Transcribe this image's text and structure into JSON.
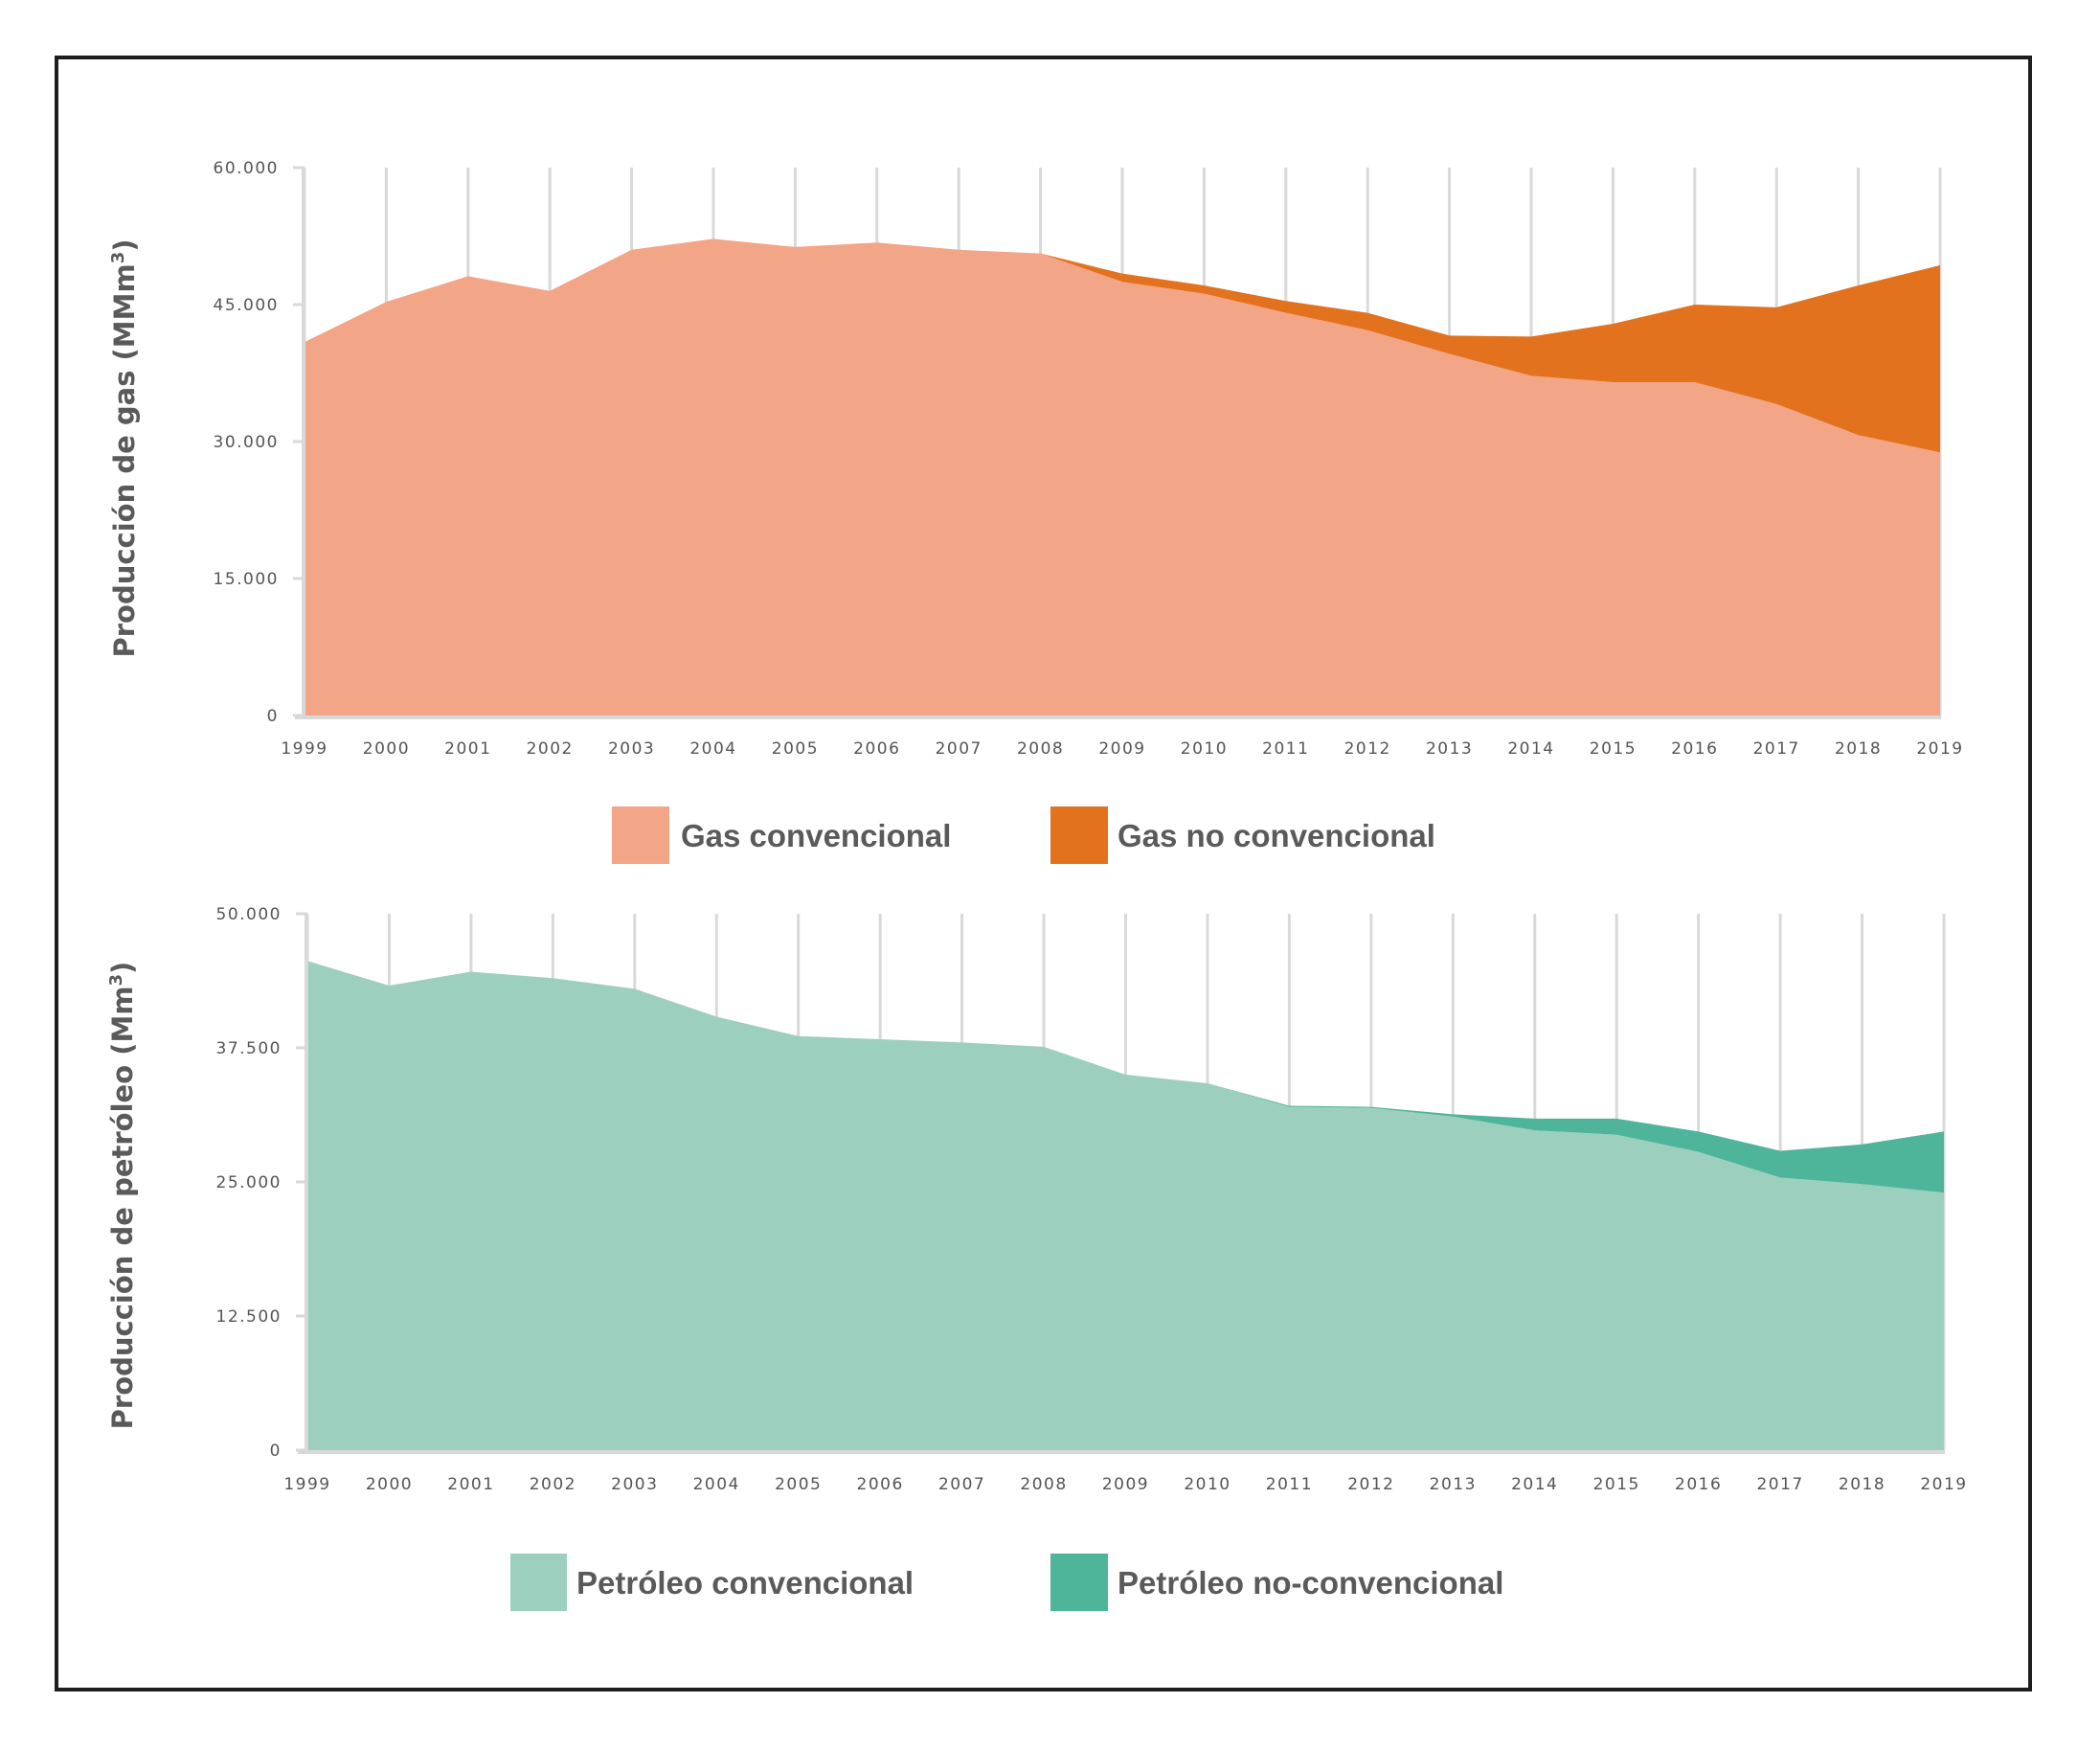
{
  "colors": {
    "gas_conventional": "#f3a587",
    "gas_unconventional": "#e2721e",
    "oil_conventional": "#9dcfbf",
    "oil_unconventional": "#4fb59a"
  },
  "chart_data": [
    {
      "type": "area",
      "stacked": true,
      "title": "",
      "xlabel": "",
      "ylabel": "Producción de gas (MMm",
      "ylabel_sup": "3",
      "ylabel_close": ")",
      "ylim": [
        0,
        60000
      ],
      "yticks": [
        0,
        15000,
        30000,
        45000,
        60000
      ],
      "ytick_labels": [
        "0",
        "15.000",
        "30.000",
        "45.000",
        "60.000"
      ],
      "grid": "vertical",
      "legend": "bottom",
      "categories": [
        "1999",
        "2000",
        "2001",
        "2002",
        "2003",
        "2004",
        "2005",
        "2006",
        "2007",
        "2008",
        "2009",
        "2010",
        "2011",
        "2012",
        "2013",
        "2014",
        "2015",
        "2016",
        "2017",
        "2018",
        "2019"
      ],
      "series": [
        {
          "name": "Gas convencional",
          "color_key": "gas_conventional",
          "values": [
            40900,
            45300,
            48100,
            46500,
            51000,
            52200,
            51300,
            51800,
            51000,
            50600,
            47500,
            46200,
            44100,
            42200,
            39600,
            37200,
            36500,
            36500,
            34100,
            30700,
            28800
          ]
        },
        {
          "name": "Gas no convencional",
          "color_key": "gas_unconventional",
          "values": [
            0,
            0,
            0,
            0,
            0,
            0,
            0,
            0,
            0,
            0,
            900,
            900,
            1300,
            1900,
            2000,
            4300,
            6400,
            8500,
            10600,
            16400,
            20500
          ]
        }
      ]
    },
    {
      "type": "area",
      "stacked": true,
      "title": "",
      "xlabel": "",
      "ylabel": "Producción de petróleo (Mm",
      "ylabel_sup": "3",
      "ylabel_close": ")",
      "ylim": [
        0,
        50000
      ],
      "yticks": [
        0,
        12500,
        25000,
        37500,
        50000
      ],
      "ytick_labels": [
        "0",
        "12.500",
        "25.000",
        "37.500",
        "50.000"
      ],
      "grid": "vertical",
      "legend": "bottom",
      "categories": [
        "1999",
        "2000",
        "2001",
        "2002",
        "2003",
        "2004",
        "2005",
        "2006",
        "2007",
        "2008",
        "2009",
        "2010",
        "2011",
        "2012",
        "2013",
        "2014",
        "2015",
        "2016",
        "2017",
        "2018",
        "2019"
      ],
      "series": [
        {
          "name": "Petróleo convencional",
          "color_key": "oil_conventional",
          "values": [
            45600,
            43300,
            44600,
            44000,
            43000,
            40400,
            38600,
            38300,
            38000,
            37600,
            35000,
            34200,
            32000,
            31900,
            31100,
            29800,
            29400,
            27800,
            25400,
            24800,
            24000
          ]
        },
        {
          "name": "Petróleo no-convencional",
          "color_key": "oil_unconventional",
          "values": [
            0,
            0,
            0,
            0,
            0,
            0,
            0,
            0,
            0,
            0,
            0,
            0,
            100,
            100,
            200,
            1100,
            1500,
            1900,
            2500,
            3700,
            5700
          ]
        }
      ]
    }
  ]
}
